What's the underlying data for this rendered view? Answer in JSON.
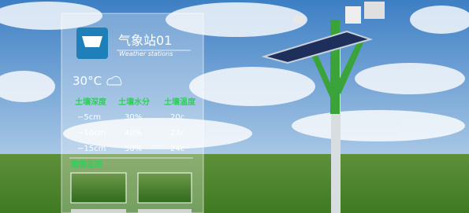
{
  "header": {
    "title": "气象站01",
    "subtitle": "Weather stations"
  },
  "weather": {
    "temperature": "30°C"
  },
  "soil": {
    "headers": [
      "土壤深度",
      "土壤水分",
      "土壤温度"
    ],
    "rows": [
      [
        "−5cm",
        "30%",
        "20c"
      ],
      [
        "−10cm",
        "40%",
        "23c"
      ],
      [
        "−15cm",
        "50%",
        "24c"
      ]
    ]
  },
  "monitor": {
    "title": "图像监控"
  }
}
